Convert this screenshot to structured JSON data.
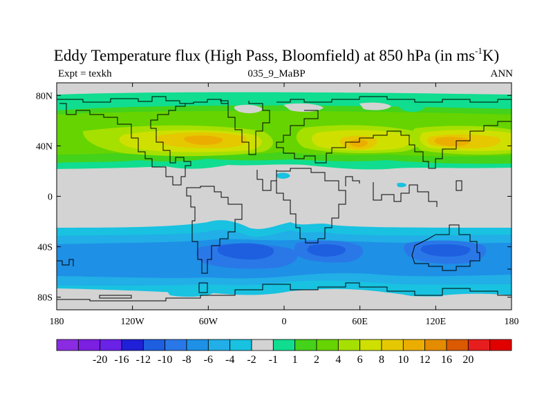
{
  "title": {
    "main": "Eddy Temperature flux (High Pass, Bloomfield) at 850 hPa (in ms",
    "sup": "-1",
    "end": "K)"
  },
  "subtitle": {
    "left": "Expt = texkh",
    "center": "035_9_MaBP",
    "right": "ANN"
  },
  "axes": {
    "lat_labels": [
      {
        "lat": 80,
        "label": "80N"
      },
      {
        "lat": 40,
        "label": "40N"
      },
      {
        "lat": 0,
        "label": "0"
      },
      {
        "lat": -40,
        "label": "40S"
      },
      {
        "lat": -80,
        "label": "80S"
      }
    ],
    "lon_labels": [
      {
        "lon": -180,
        "label": "180"
      },
      {
        "lon": -120,
        "label": "120W"
      },
      {
        "lon": -60,
        "label": "60W"
      },
      {
        "lon": 0,
        "label": "0"
      },
      {
        "lon": 60,
        "label": "60E"
      },
      {
        "lon": 120,
        "label": "120E"
      },
      {
        "lon": 180,
        "label": "180"
      }
    ],
    "lat_range": [
      -90,
      90
    ],
    "lon_range": [
      -180,
      180
    ]
  },
  "colorbar": {
    "colors": [
      "#8b2be2",
      "#7b1fe0",
      "#6a22e6",
      "#2020d8",
      "#1e5fe0",
      "#2a78e8",
      "#1e90e6",
      "#22aee6",
      "#18c2e0",
      "#d3d3d3",
      "#10dd90",
      "#44d21a",
      "#66d400",
      "#a6e000",
      "#cfe000",
      "#e5c800",
      "#ebae00",
      "#e48c00",
      "#db5a00",
      "#e81e1e",
      "#e00000"
    ],
    "labels": [
      "-20",
      "-16",
      "-12",
      "-10",
      "-8",
      "-6",
      "-4",
      "-2",
      "-1",
      "1",
      "2",
      "4",
      "6",
      "8",
      "10",
      "12",
      "16",
      "20"
    ]
  },
  "map_colors": {
    "neutral": "#d3d3d3",
    "pos": [
      "#10dd90",
      "#44d21a",
      "#66d400",
      "#a6e000",
      "#cfe000",
      "#e5c800",
      "#ebae00"
    ],
    "neg": [
      "#18c2e0",
      "#22aee6",
      "#1e90e6",
      "#2a78e8",
      "#1e5fe0"
    ]
  }
}
